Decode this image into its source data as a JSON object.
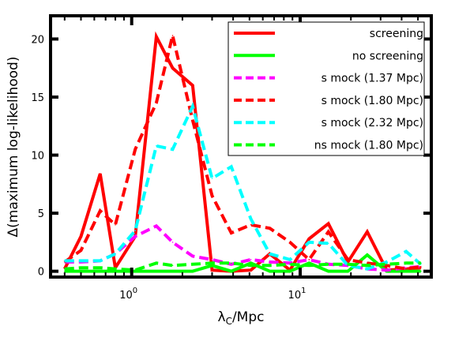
{
  "chart_data": {
    "type": "line",
    "title": "",
    "xlabel_main": "λ",
    "xlabel_sub": "C",
    "xlabel_rest": "/Mpc",
    "ylabel": "Δ(maximum log-likelihood)",
    "xscale": "log",
    "xlim": [
      0.33,
      60
    ],
    "ylim": [
      -0.5,
      22
    ],
    "x_ticks": [
      {
        "value": 1,
        "base": "10",
        "exp": "0"
      },
      {
        "value": 10,
        "base": "10",
        "exp": "1"
      }
    ],
    "y_ticks": [
      {
        "value": 0,
        "label": "0"
      },
      {
        "value": 5,
        "label": "5"
      },
      {
        "value": 10,
        "label": "10"
      },
      {
        "value": 15,
        "label": "15"
      },
      {
        "value": 20,
        "label": "20"
      }
    ],
    "grid": false,
    "legend_position": "top-right",
    "x": [
      0.4,
      0.5,
      0.65,
      0.8,
      1.05,
      1.4,
      1.75,
      2.3,
      3.0,
      3.9,
      5.1,
      6.6,
      8.7,
      11.3,
      14.7,
      19.2,
      25.0,
      32.6,
      42.5,
      52.0
    ],
    "series": [
      {
        "name": "screening",
        "color": "#ff0000",
        "dash": "solid",
        "values": [
          0.2,
          3.0,
          8.4,
          0.3,
          3.0,
          20.2,
          17.5,
          16.0,
          0.1,
          0.0,
          0.1,
          1.5,
          0.1,
          2.8,
          4.1,
          0.8,
          3.4,
          0.1,
          0.2,
          0.3
        ]
      },
      {
        "name": "no screening",
        "color": "#00ff00",
        "dash": "solid",
        "values": [
          0.0,
          0.0,
          0.0,
          0.0,
          0.0,
          0.0,
          0.0,
          0.0,
          0.5,
          0.0,
          0.7,
          0.0,
          0.0,
          0.7,
          0.0,
          0.0,
          1.4,
          0.0,
          0.0,
          0.0
        ]
      },
      {
        "name": "s mock (1.37 Mpc)",
        "color": "#ff00ff",
        "dash": "dashed",
        "values": [
          0.8,
          0.8,
          0.9,
          1.5,
          3.0,
          3.9,
          2.5,
          1.3,
          1.0,
          0.6,
          1.0,
          0.8,
          0.7,
          1.0,
          0.6,
          0.5,
          0.2,
          0.1,
          0.3,
          0.4
        ]
      },
      {
        "name": "s mock (1.80 Mpc)",
        "color": "#ff0000",
        "dash": "dashed",
        "values": [
          0.8,
          1.8,
          5.2,
          4.0,
          10.5,
          14.5,
          20.3,
          13.0,
          6.5,
          3.3,
          4.0,
          3.7,
          2.5,
          1.0,
          3.4,
          1.0,
          0.7,
          0.5,
          0.2,
          0.4
        ]
      },
      {
        "name": "s mock (2.32 Mpc)",
        "color": "#00ffff",
        "dash": "dashed",
        "values": [
          0.9,
          0.9,
          0.9,
          1.5,
          3.5,
          10.8,
          10.5,
          14.2,
          8.0,
          9.0,
          4.5,
          1.5,
          1.0,
          2.5,
          2.4,
          0.5,
          0.2,
          0.8,
          1.7,
          0.6
        ]
      },
      {
        "name": "ns mock (1.80 Mpc)",
        "color": "#00ff00",
        "dash": "dashed",
        "values": [
          0.2,
          0.3,
          0.3,
          0.2,
          0.1,
          0.7,
          0.5,
          0.6,
          0.7,
          0.7,
          0.5,
          0.5,
          0.6,
          0.5,
          0.6,
          0.6,
          0.5,
          0.6,
          0.7,
          0.7
        ]
      }
    ]
  }
}
